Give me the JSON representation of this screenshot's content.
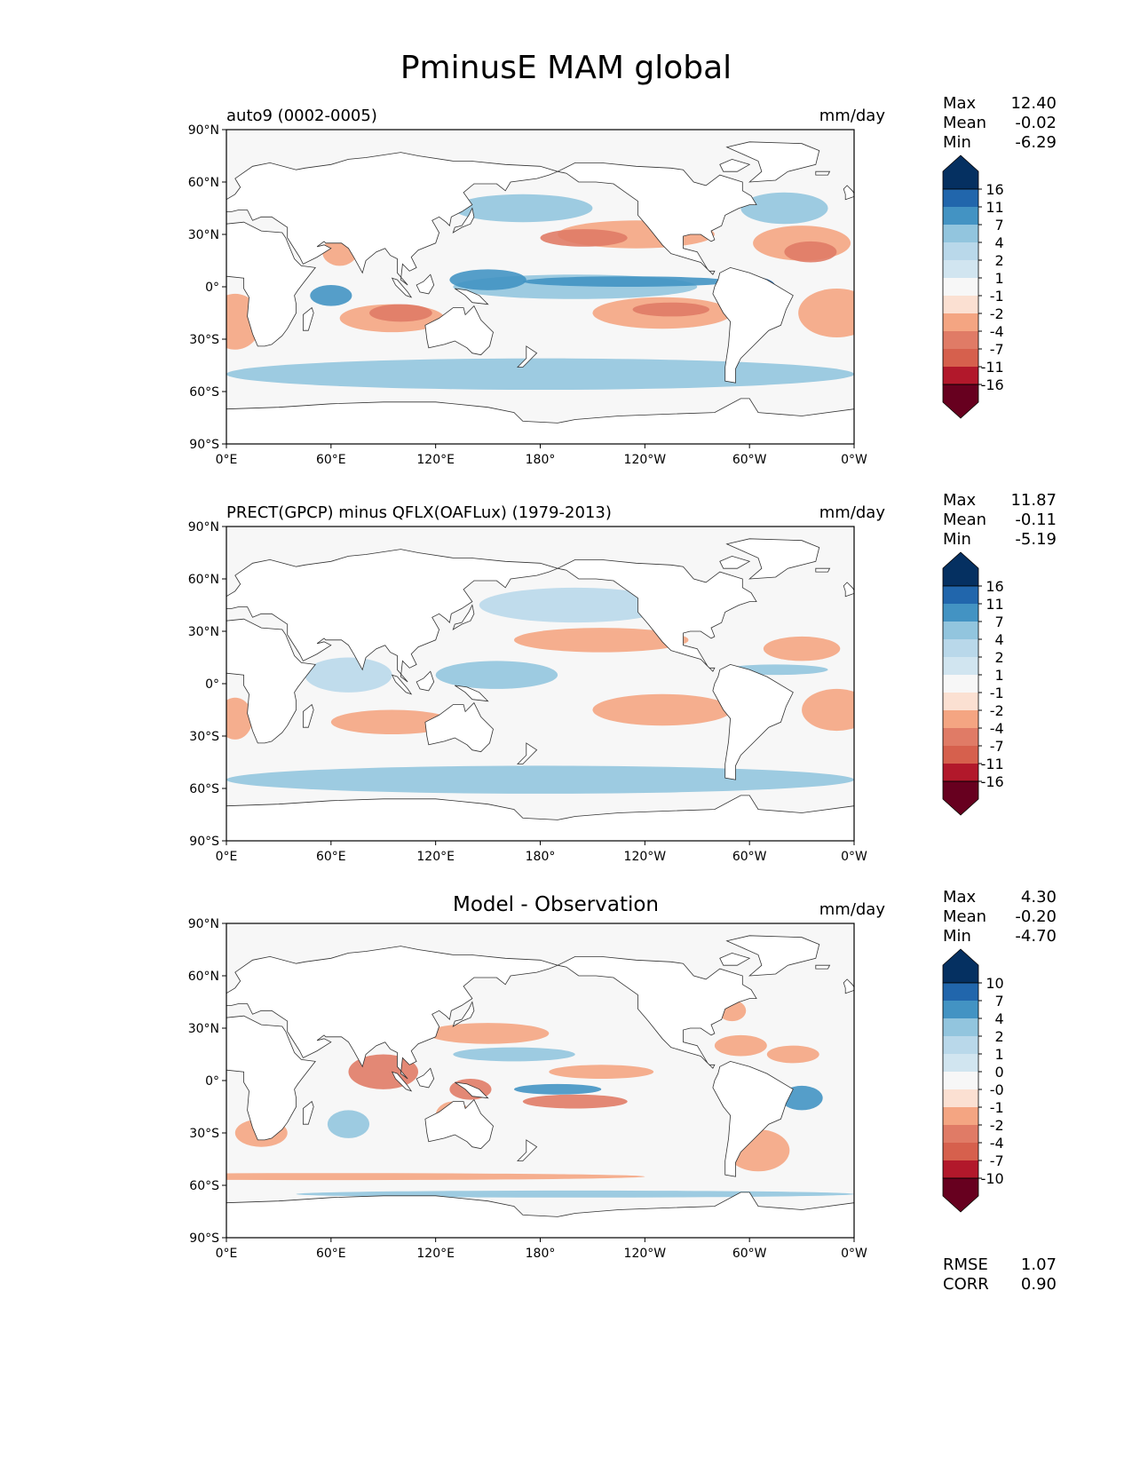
{
  "title": "PminusE MAM global",
  "colors": {
    "div16": [
      "#053061",
      "#2166ac",
      "#4393c3",
      "#92c5de",
      "#b9d8ea",
      "#d1e5f0",
      "#f7f7f7",
      "#fbe0d2",
      "#f4a582",
      "#e07b66",
      "#d6604d",
      "#b2182b",
      "#67001f"
    ],
    "land": "#ffffff",
    "frame": "#000000"
  },
  "axes": {
    "lat_ticks": [
      "90°N",
      "60°N",
      "30°N",
      "0°",
      "30°S",
      "60°S",
      "90°S"
    ],
    "lon_ticks": [
      "0°E",
      "60°E",
      "120°E",
      "180°",
      "120°W",
      "60°W",
      "0°W"
    ]
  },
  "panels": [
    {
      "id": "test",
      "title_left": "auto9 (0002-0005)",
      "title_center": "",
      "units": "mm/day",
      "stats": {
        "Max": "12.40",
        "Mean": "-0.02",
        "Min": "-6.29"
      },
      "colorbar_levels": [
        "16.0",
        "11.0",
        "7.0",
        "4.0",
        "2.0",
        "1.0",
        "-1.0",
        "-2.0",
        "-4.0",
        "-7.0",
        "-11.0",
        "-16.0"
      ],
      "footer": null
    },
    {
      "id": "reference",
      "title_left": "PRECT(GPCP) minus QFLX(OAFLux) (1979-2013)",
      "title_center": "",
      "units": "mm/day",
      "stats": {
        "Max": "11.87",
        "Mean": "-0.11",
        "Min": "-5.19"
      },
      "colorbar_levels": [
        "16.0",
        "11.0",
        "7.0",
        "4.0",
        "2.0",
        "1.0",
        "-1.0",
        "-2.0",
        "-4.0",
        "-7.0",
        "-11.0",
        "-16.0"
      ],
      "footer": null
    },
    {
      "id": "difference",
      "title_left": "",
      "title_center": "Model - Observation",
      "units": "mm/day",
      "stats": {
        "Max": "4.30",
        "Mean": "-0.20",
        "Min": "-4.70"
      },
      "colorbar_levels": [
        "10.0",
        "7.0",
        "4.0",
        "2.0",
        "1.0",
        "0.5",
        "-0.5",
        "-1.0",
        "-2.0",
        "-4.0",
        "-7.0",
        "-10.0"
      ],
      "footer": {
        "RMSE": "1.07",
        "CORR": "0.90"
      }
    }
  ]
}
